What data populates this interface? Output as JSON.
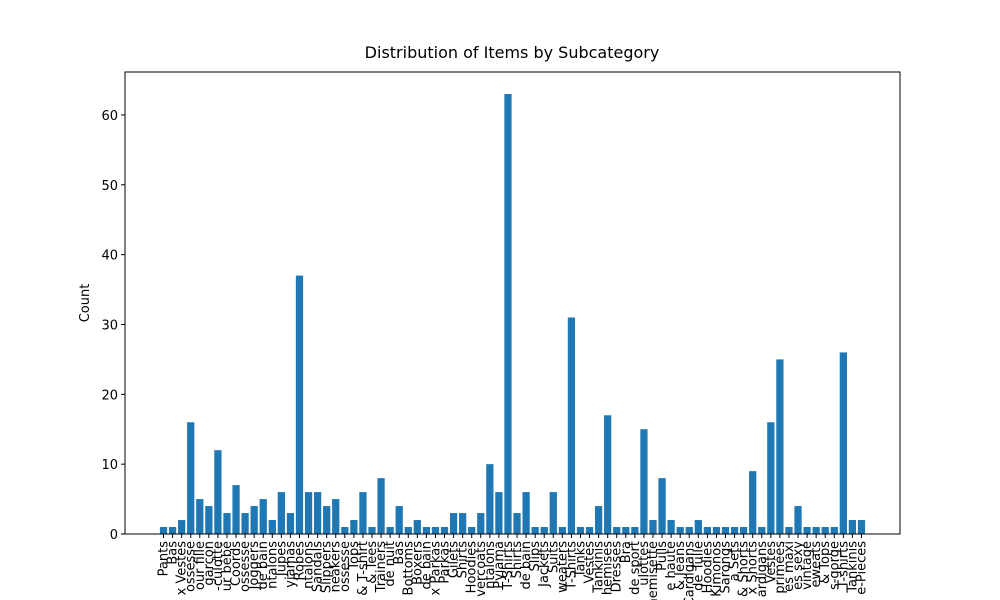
{
  "chart_data": {
    "type": "bar",
    "title": "Distribution of Items by Subcategory",
    "ylabel": "Count",
    "color": "#1f77b4",
    "categories": [
      "Pants",
      "Bas",
      "x Vestes",
      "ossesse",
      "our fille",
      "garçon",
      "-culotte",
      "ur bébé",
      "Coords",
      "ossesse",
      "Joggers",
      "de bain",
      "ntalons",
      "Jupes",
      "yjamas",
      "Robes",
      "ntalons",
      "Sandals",
      "Slippers",
      "neakers",
      "ossesse",
      "Tops",
      "& T-shirt",
      "& Tees",
      "Trainers",
      "de nuit",
      "Bas",
      "Bottoms",
      "Boxers",
      "de bain",
      "x Parkas",
      "Parkas",
      "Gilets",
      "Shirts",
      "Hoodies",
      "vercoats",
      "ntalons",
      "Pyjama",
      "T-Shirts",
      "Shirts",
      "de bain",
      "Slips",
      "Jackets",
      "Suits",
      "weaters",
      "T-Shirts",
      "Tanks",
      "Vestes",
      "Tankinis",
      "hemises",
      "Dresses",
      "Bra",
      "de sport",
      "ulottes",
      "Chemisette",
      "Pulls",
      "e haute",
      "& Jeans",
      "Cardigans",
      "de Tulle",
      "Hoodies",
      "Kimonos",
      "Sarongs",
      "a Sets",
      "& Shorts",
      "x Shorts",
      "ardigans",
      "Vestes",
      "primées",
      "es maxi",
      "es sexy",
      "vintage",
      "eweats",
      "& Tops",
      "s-gorge",
      "T-shirts",
      "Tankinis",
      "e-Pieces"
    ],
    "values": [
      1,
      1,
      2,
      16,
      5,
      4,
      12,
      3,
      7,
      3,
      4,
      5,
      2,
      6,
      3,
      37,
      6,
      6,
      4,
      5,
      1,
      2,
      6,
      1,
      8,
      1,
      4,
      1,
      2,
      1,
      1,
      1,
      3,
      3,
      1,
      3,
      10,
      6,
      63,
      3,
      6,
      1,
      1,
      6,
      1,
      31,
      1,
      1,
      4,
      17,
      1,
      1,
      1,
      15,
      2,
      8,
      2,
      1,
      1,
      2,
      1,
      1,
      1,
      1,
      1,
      9,
      1,
      16,
      25,
      1,
      4,
      1,
      1,
      1,
      1,
      26,
      2,
      2
    ],
    "ylim": [
      0,
      66.15
    ],
    "yticks": [
      0,
      10,
      20,
      30,
      40,
      50,
      60
    ]
  }
}
